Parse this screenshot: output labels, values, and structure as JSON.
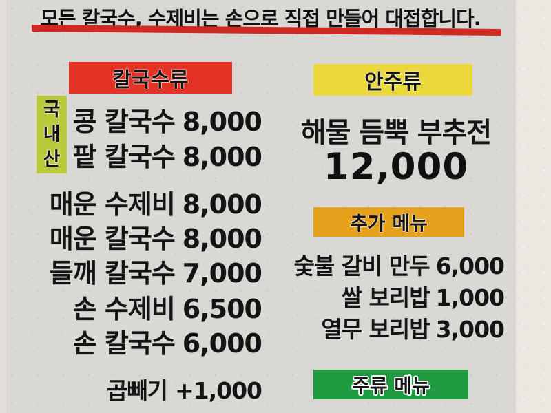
{
  "banner": {
    "text": "모든 칼국수, 수제비는 손으로 직접 만들어 대접합니다.",
    "underline_color": "#ce2a21"
  },
  "colors": {
    "board_bg": "#d9d8d4",
    "wall_bg": "#ebe8e1",
    "text": "#141414"
  },
  "noodle_section": {
    "header": {
      "label": "칼국수류",
      "bg": "#e43225"
    },
    "domestic_badge": {
      "label": "국내산",
      "chars": [
        "국",
        "내",
        "산"
      ],
      "bg": "#b9ca3b"
    },
    "items": [
      {
        "name": "콩 칼국수",
        "price": "8,000"
      },
      {
        "name": "팥 칼국수",
        "price": "8,000"
      },
      {
        "name": "매운 수제비",
        "price": "8,000"
      },
      {
        "name": "매운 칼국수",
        "price": "8,000"
      },
      {
        "name": "들깨 칼국수",
        "price": "7,000"
      },
      {
        "name": "손 수제비",
        "price": "6,500"
      },
      {
        "name": "손 칼국수",
        "price": "6,000"
      }
    ],
    "extra_item": {
      "name": "곱빼기",
      "price": "+1,000"
    }
  },
  "anju_section": {
    "header": {
      "label": "안주류",
      "bg": "#ebd93b"
    },
    "feature_item": {
      "name": "해물 듬뿍 부추전",
      "price": "12,000"
    }
  },
  "extra_menu_section": {
    "header": {
      "label": "추가 메뉴",
      "bg": "#e7a21d"
    },
    "items": [
      {
        "name": "숯불 갈비 만두",
        "price": "6,000"
      },
      {
        "name": "쌀 보리밥",
        "price": "1,000"
      },
      {
        "name": "열무 보리밥",
        "price": "3,000"
      }
    ]
  },
  "drinks_section": {
    "header": {
      "label": "주류 메뉴",
      "bg": "#1f9a41"
    }
  }
}
